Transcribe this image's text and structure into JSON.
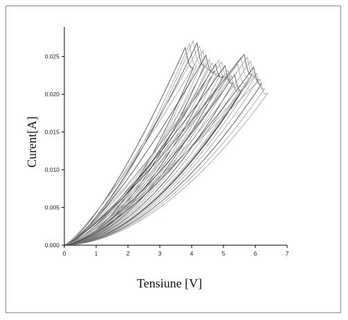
{
  "chart_data": {
    "type": "line",
    "title": "",
    "xlabel": "Tensiune [V]",
    "ylabel": "Curent[A]",
    "xlim": [
      0,
      7
    ],
    "ylim": [
      0,
      0.028
    ],
    "xticks": [
      "0",
      "1",
      "2",
      "3",
      "4",
      "5",
      "6",
      "7"
    ],
    "yticks": [
      "0.000",
      "0.005",
      "0.010",
      "0.015",
      "0.020",
      "0.025"
    ],
    "grid": false,
    "legend": "none",
    "series_count": 24,
    "series_params": {
      "peak_voltage": [
        3.8,
        3.93,
        4.05,
        4.17,
        4.25,
        4.35,
        4.45,
        4.55,
        4.65,
        4.75,
        4.85,
        4.95,
        5.05,
        5.15,
        5.25,
        5.35,
        5.45,
        5.55,
        5.65,
        5.75,
        5.85,
        5.95,
        6.05,
        6.15
      ],
      "peak_current": [
        0.0262,
        0.0267,
        0.0271,
        0.0268,
        0.0264,
        0.0258,
        0.0252,
        0.0246,
        0.0242,
        0.024,
        0.0245,
        0.0243,
        0.0238,
        0.0232,
        0.0225,
        0.0226,
        0.024,
        0.0249,
        0.0253,
        0.0249,
        0.0244,
        0.0236,
        0.0228,
        0.022
      ],
      "end_voltage": [
        4.05,
        4.15,
        4.3,
        4.4,
        4.5,
        4.6,
        4.7,
        4.8,
        4.9,
        5.0,
        5.1,
        5.2,
        5.3,
        5.4,
        5.5,
        5.6,
        5.7,
        5.8,
        5.9,
        6.0,
        6.1,
        6.2,
        6.3,
        6.4
      ],
      "end_current": [
        0.0235,
        0.0238,
        0.024,
        0.0238,
        0.0235,
        0.0232,
        0.023,
        0.0228,
        0.0226,
        0.0225,
        0.0222,
        0.022,
        0.0215,
        0.021,
        0.0205,
        0.0206,
        0.0215,
        0.0222,
        0.0226,
        0.0224,
        0.022,
        0.0214,
        0.0208,
        0.0202
      ]
    },
    "colors": {
      "line_light": "#9a9a9a",
      "line_dark": "#1a1a1a",
      "axis": "#000000"
    }
  }
}
